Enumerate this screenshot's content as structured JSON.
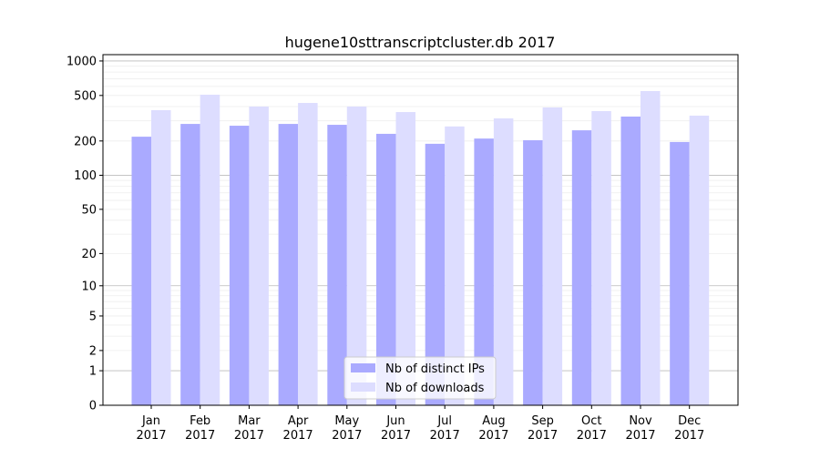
{
  "chart_data": {
    "type": "bar",
    "title": "hugene10sttranscriptcluster.db 2017",
    "xlabel": "",
    "ylabel": "",
    "yscale": "symlog",
    "ylim": [
      0,
      1200
    ],
    "grid": true,
    "legend_position": "bottom-center",
    "yticks": [
      0,
      1,
      2,
      5,
      10,
      20,
      50,
      100,
      200,
      500,
      1000
    ],
    "ytick_labels": [
      "0",
      "1",
      "2",
      "5",
      "10",
      "20",
      "50",
      "100",
      "200",
      "500",
      "1000"
    ],
    "categories": [
      [
        "Jan",
        "2017"
      ],
      [
        "Feb",
        "2017"
      ],
      [
        "Mar",
        "2017"
      ],
      [
        "Apr",
        "2017"
      ],
      [
        "May",
        "2017"
      ],
      [
        "Jun",
        "2017"
      ],
      [
        "Jul",
        "2017"
      ],
      [
        "Aug",
        "2017"
      ],
      [
        "Sep",
        "2017"
      ],
      [
        "Oct",
        "2017"
      ],
      [
        "Nov",
        "2017"
      ],
      [
        "Dec",
        "2017"
      ]
    ],
    "series": [
      {
        "name": "Nb of distinct IPs",
        "color": "#aaaaff",
        "values": [
          218,
          282,
          272,
          282,
          277,
          231,
          189,
          210,
          203,
          248,
          327,
          196
        ]
      },
      {
        "name": "Nb of downloads",
        "color": "#ddddff",
        "values": [
          372,
          508,
          400,
          430,
          400,
          358,
          268,
          315,
          393,
          365,
          546,
          333
        ]
      }
    ]
  }
}
